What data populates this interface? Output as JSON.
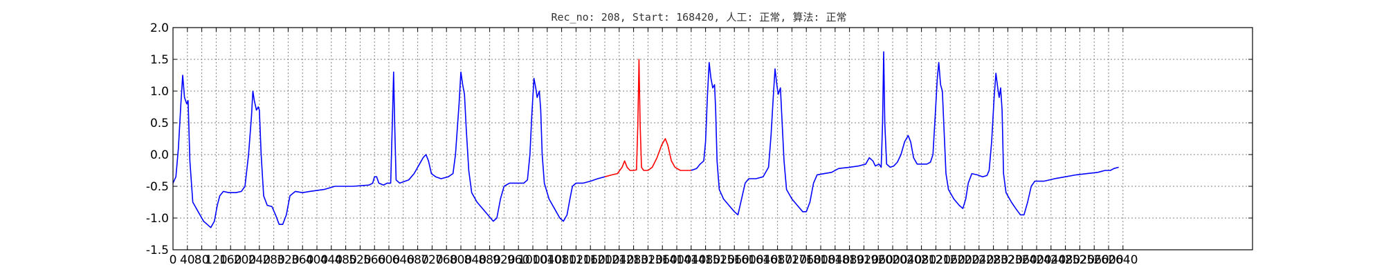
{
  "chart_data": {
    "type": "line",
    "title": "Rec_no: 208, Start: 168420, 人工: 正常, 算法: 正常",
    "xlabel": "",
    "ylabel": "",
    "xlim": [
      0,
      3000
    ],
    "ylim": [
      -1.5,
      2.0
    ],
    "grid": true,
    "yticks": [
      -1.5,
      -1.0,
      -0.5,
      0.0,
      0.5,
      1.0,
      1.5,
      2.0
    ],
    "ytick_labels": [
      "-1.5",
      "-1.0",
      "-0.5",
      "0.0",
      "0.5",
      "1.0",
      "1.5",
      "2.0"
    ],
    "xtick_step": 40,
    "xtick_max": 2640,
    "colors": {
      "normal": "#0000ff",
      "highlight": "#ff0000",
      "grid": "#7f7f7f"
    },
    "highlight_range": [
      1200,
      1440
    ],
    "series": [
      {
        "color": "#0000ff",
        "points": [
          [
            0,
            -0.45
          ],
          [
            8,
            -0.35
          ],
          [
            15,
            0.1
          ],
          [
            22,
            0.8
          ],
          [
            27,
            1.25
          ],
          [
            32,
            0.9
          ],
          [
            38,
            0.8
          ],
          [
            42,
            0.85
          ],
          [
            47,
            -0.1
          ],
          [
            55,
            -0.75
          ],
          [
            70,
            -0.9
          ],
          [
            85,
            -1.05
          ],
          [
            95,
            -1.1
          ],
          [
            105,
            -1.15
          ],
          [
            115,
            -1.05
          ],
          [
            123,
            -0.8
          ],
          [
            130,
            -0.65
          ],
          [
            140,
            -0.58
          ],
          [
            155,
            -0.6
          ],
          [
            175,
            -0.6
          ],
          [
            190,
            -0.58
          ],
          [
            200,
            -0.5
          ],
          [
            210,
            0.0
          ],
          [
            218,
            0.6
          ],
          [
            222,
            1.0
          ],
          [
            226,
            0.85
          ],
          [
            232,
            0.7
          ],
          [
            237,
            0.75
          ],
          [
            240,
            0.7
          ],
          [
            245,
            0.0
          ],
          [
            252,
            -0.65
          ],
          [
            262,
            -0.8
          ],
          [
            275,
            -0.82
          ],
          [
            285,
            -0.95
          ],
          [
            295,
            -1.1
          ],
          [
            305,
            -1.1
          ],
          [
            315,
            -0.95
          ],
          [
            325,
            -0.65
          ],
          [
            340,
            -0.58
          ],
          [
            360,
            -0.6
          ],
          [
            380,
            -0.58
          ],
          [
            420,
            -0.55
          ],
          [
            450,
            -0.5
          ],
          [
            500,
            -0.5
          ],
          [
            545,
            -0.48
          ],
          [
            555,
            -0.45
          ],
          [
            560,
            -0.35
          ],
          [
            566,
            -0.35
          ],
          [
            572,
            -0.45
          ],
          [
            585,
            -0.48
          ],
          [
            595,
            -0.45
          ],
          [
            605,
            -0.45
          ],
          [
            610,
            0.6
          ],
          [
            613,
            1.3
          ],
          [
            616,
            0.5
          ],
          [
            620,
            -0.4
          ],
          [
            630,
            -0.45
          ],
          [
            655,
            -0.4
          ],
          [
            670,
            -0.3
          ],
          [
            685,
            -0.15
          ],
          [
            695,
            -0.05
          ],
          [
            703,
            0.0
          ],
          [
            710,
            -0.1
          ],
          [
            718,
            -0.3
          ],
          [
            730,
            -0.35
          ],
          [
            745,
            -0.38
          ],
          [
            765,
            -0.35
          ],
          [
            778,
            -0.3
          ],
          [
            785,
            0.0
          ],
          [
            795,
            0.8
          ],
          [
            800,
            1.3
          ],
          [
            805,
            1.1
          ],
          [
            810,
            0.95
          ],
          [
            815,
            0.4
          ],
          [
            822,
            -0.25
          ],
          [
            830,
            -0.6
          ],
          [
            845,
            -0.75
          ],
          [
            860,
            -0.85
          ],
          [
            875,
            -0.95
          ],
          [
            890,
            -1.05
          ],
          [
            900,
            -1.0
          ],
          [
            910,
            -0.7
          ],
          [
            920,
            -0.5
          ],
          [
            935,
            -0.45
          ],
          [
            955,
            -0.45
          ],
          [
            975,
            -0.45
          ],
          [
            985,
            -0.4
          ],
          [
            992,
            0.0
          ],
          [
            997,
            0.6
          ],
          [
            1003,
            1.2
          ],
          [
            1008,
            1.05
          ],
          [
            1012,
            0.9
          ],
          [
            1018,
            1.0
          ],
          [
            1022,
            0.7
          ],
          [
            1026,
            0.0
          ],
          [
            1032,
            -0.45
          ],
          [
            1045,
            -0.7
          ],
          [
            1060,
            -0.85
          ],
          [
            1075,
            -1.0
          ],
          [
            1085,
            -1.05
          ],
          [
            1095,
            -0.95
          ],
          [
            1103,
            -0.7
          ],
          [
            1110,
            -0.5
          ],
          [
            1120,
            -0.45
          ],
          [
            1140,
            -0.45
          ],
          [
            1160,
            -0.42
          ],
          [
            1180,
            -0.38
          ],
          [
            1200,
            -0.35
          ]
        ]
      },
      {
        "color": "#ff0000",
        "points": [
          [
            1200,
            -0.35
          ],
          [
            1220,
            -0.32
          ],
          [
            1235,
            -0.3
          ],
          [
            1248,
            -0.2
          ],
          [
            1255,
            -0.1
          ],
          [
            1262,
            -0.2
          ],
          [
            1270,
            -0.25
          ],
          [
            1280,
            -0.25
          ],
          [
            1288,
            -0.24
          ],
          [
            1292,
            0.5
          ],
          [
            1295,
            1.5
          ],
          [
            1298,
            0.5
          ],
          [
            1302,
            -0.2
          ],
          [
            1308,
            -0.25
          ],
          [
            1320,
            -0.25
          ],
          [
            1332,
            -0.2
          ],
          [
            1345,
            -0.05
          ],
          [
            1358,
            0.15
          ],
          [
            1368,
            0.25
          ],
          [
            1375,
            0.15
          ],
          [
            1385,
            -0.1
          ],
          [
            1395,
            -0.2
          ],
          [
            1410,
            -0.25
          ],
          [
            1425,
            -0.25
          ],
          [
            1440,
            -0.25
          ]
        ]
      },
      {
        "color": "#0000ff",
        "points": [
          [
            1440,
            -0.25
          ],
          [
            1455,
            -0.22
          ],
          [
            1465,
            -0.15
          ],
          [
            1475,
            -0.1
          ],
          [
            1480,
            0.2
          ],
          [
            1485,
            0.9
          ],
          [
            1490,
            1.45
          ],
          [
            1495,
            1.2
          ],
          [
            1500,
            1.05
          ],
          [
            1505,
            1.1
          ],
          [
            1508,
            0.7
          ],
          [
            1512,
            -0.1
          ],
          [
            1518,
            -0.55
          ],
          [
            1530,
            -0.7
          ],
          [
            1545,
            -0.8
          ],
          [
            1560,
            -0.9
          ],
          [
            1570,
            -0.95
          ],
          [
            1580,
            -0.7
          ],
          [
            1590,
            -0.45
          ],
          [
            1600,
            -0.38
          ],
          [
            1620,
            -0.38
          ],
          [
            1640,
            -0.35
          ],
          [
            1655,
            -0.2
          ],
          [
            1662,
            0.3
          ],
          [
            1668,
            0.9
          ],
          [
            1673,
            1.35
          ],
          [
            1678,
            1.1
          ],
          [
            1682,
            0.95
          ],
          [
            1688,
            1.05
          ],
          [
            1692,
            0.6
          ],
          [
            1698,
            -0.1
          ],
          [
            1705,
            -0.55
          ],
          [
            1720,
            -0.7
          ],
          [
            1735,
            -0.8
          ],
          [
            1750,
            -0.9
          ],
          [
            1760,
            -0.9
          ],
          [
            1770,
            -0.75
          ],
          [
            1780,
            -0.45
          ],
          [
            1790,
            -0.32
          ],
          [
            1810,
            -0.3
          ],
          [
            1830,
            -0.28
          ],
          [
            1850,
            -0.22
          ],
          [
            1880,
            -0.2
          ],
          [
            1905,
            -0.18
          ],
          [
            1925,
            -0.15
          ],
          [
            1935,
            -0.05
          ],
          [
            1945,
            -0.1
          ],
          [
            1952,
            -0.18
          ],
          [
            1962,
            -0.15
          ],
          [
            1968,
            -0.2
          ],
          [
            1972,
            0.5
          ],
          [
            1975,
            1.62
          ],
          [
            1978,
            0.5
          ],
          [
            1983,
            -0.15
          ],
          [
            1993,
            -0.2
          ],
          [
            2003,
            -0.18
          ],
          [
            2013,
            -0.12
          ],
          [
            2023,
            0.0
          ],
          [
            2033,
            0.2
          ],
          [
            2043,
            0.3
          ],
          [
            2050,
            0.2
          ],
          [
            2058,
            -0.05
          ],
          [
            2068,
            -0.15
          ],
          [
            2080,
            -0.15
          ],
          [
            2095,
            -0.15
          ],
          [
            2105,
            -0.12
          ],
          [
            2112,
            0.0
          ],
          [
            2118,
            0.6
          ],
          [
            2124,
            1.2
          ],
          [
            2128,
            1.45
          ],
          [
            2133,
            1.1
          ],
          [
            2138,
            1.0
          ],
          [
            2142,
            0.5
          ],
          [
            2148,
            -0.3
          ],
          [
            2155,
            -0.55
          ],
          [
            2170,
            -0.7
          ],
          [
            2185,
            -0.8
          ],
          [
            2195,
            -0.85
          ],
          [
            2203,
            -0.7
          ],
          [
            2210,
            -0.45
          ],
          [
            2220,
            -0.3
          ],
          [
            2235,
            -0.32
          ],
          [
            2250,
            -0.35
          ],
          [
            2262,
            -0.33
          ],
          [
            2268,
            -0.25
          ],
          [
            2275,
            0.2
          ],
          [
            2282,
            0.9
          ],
          [
            2287,
            1.28
          ],
          [
            2292,
            1.05
          ],
          [
            2296,
            0.9
          ],
          [
            2300,
            1.05
          ],
          [
            2304,
            0.7
          ],
          [
            2308,
            -0.3
          ],
          [
            2315,
            -0.6
          ],
          [
            2330,
            -0.75
          ],
          [
            2342,
            -0.85
          ],
          [
            2355,
            -0.95
          ],
          [
            2365,
            -0.95
          ],
          [
            2375,
            -0.75
          ],
          [
            2385,
            -0.5
          ],
          [
            2395,
            -0.42
          ],
          [
            2420,
            -0.42
          ],
          [
            2450,
            -0.38
          ],
          [
            2480,
            -0.35
          ],
          [
            2510,
            -0.32
          ],
          [
            2540,
            -0.3
          ],
          [
            2570,
            -0.28
          ],
          [
            2590,
            -0.25
          ],
          [
            2605,
            -0.25
          ],
          [
            2615,
            -0.22
          ],
          [
            2628,
            -0.2
          ]
        ]
      }
    ]
  }
}
